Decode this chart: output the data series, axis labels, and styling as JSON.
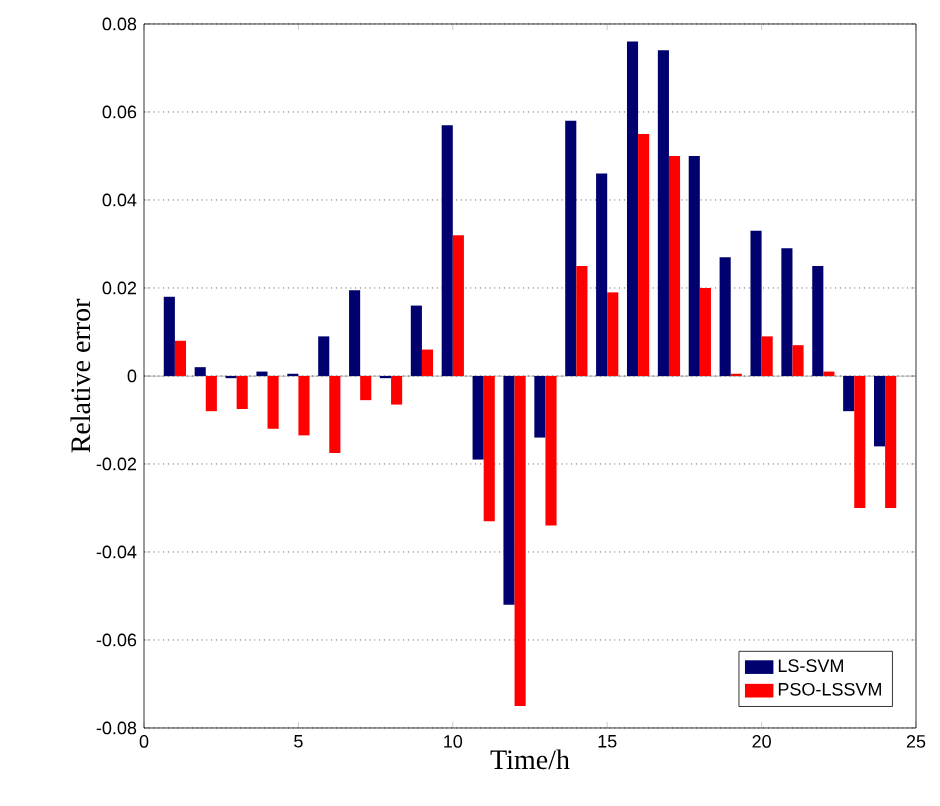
{
  "chart_data": {
    "type": "bar",
    "xlabel": "Time/h",
    "ylabel": "Relative error",
    "x": [
      1,
      2,
      3,
      4,
      5,
      6,
      7,
      8,
      9,
      10,
      11,
      12,
      13,
      14,
      15,
      16,
      17,
      18,
      19,
      20,
      21,
      22,
      23,
      24
    ],
    "series": [
      {
        "name": "LS-SVM",
        "color": "#00006e",
        "values": [
          0.018,
          0.002,
          -0.0005,
          0.001,
          0.0005,
          0.009,
          0.0195,
          -0.0005,
          0.016,
          0.057,
          -0.019,
          -0.052,
          -0.014,
          0.058,
          0.046,
          0.076,
          0.074,
          0.05,
          0.027,
          0.033,
          0.029,
          0.025,
          -0.008,
          -0.016
        ]
      },
      {
        "name": "PSO-LSSVM",
        "color": "#ff0000",
        "values": [
          0.008,
          -0.008,
          -0.0075,
          -0.012,
          -0.0135,
          -0.0175,
          -0.0055,
          -0.0065,
          0.006,
          0.032,
          -0.033,
          -0.075,
          -0.034,
          0.025,
          0.019,
          0.055,
          0.05,
          0.02,
          0.0005,
          0.009,
          0.007,
          0.001,
          -0.03,
          -0.03
        ]
      }
    ],
    "xlim": [
      0,
      25
    ],
    "xticks": [
      0,
      5,
      10,
      15,
      20,
      25
    ],
    "ylim": [
      -0.08,
      0.08
    ],
    "yticks": [
      -0.08,
      -0.06,
      -0.04,
      -0.02,
      0,
      0.02,
      0.04,
      0.06,
      0.08
    ],
    "grid": "y",
    "legend": "bottom right"
  }
}
